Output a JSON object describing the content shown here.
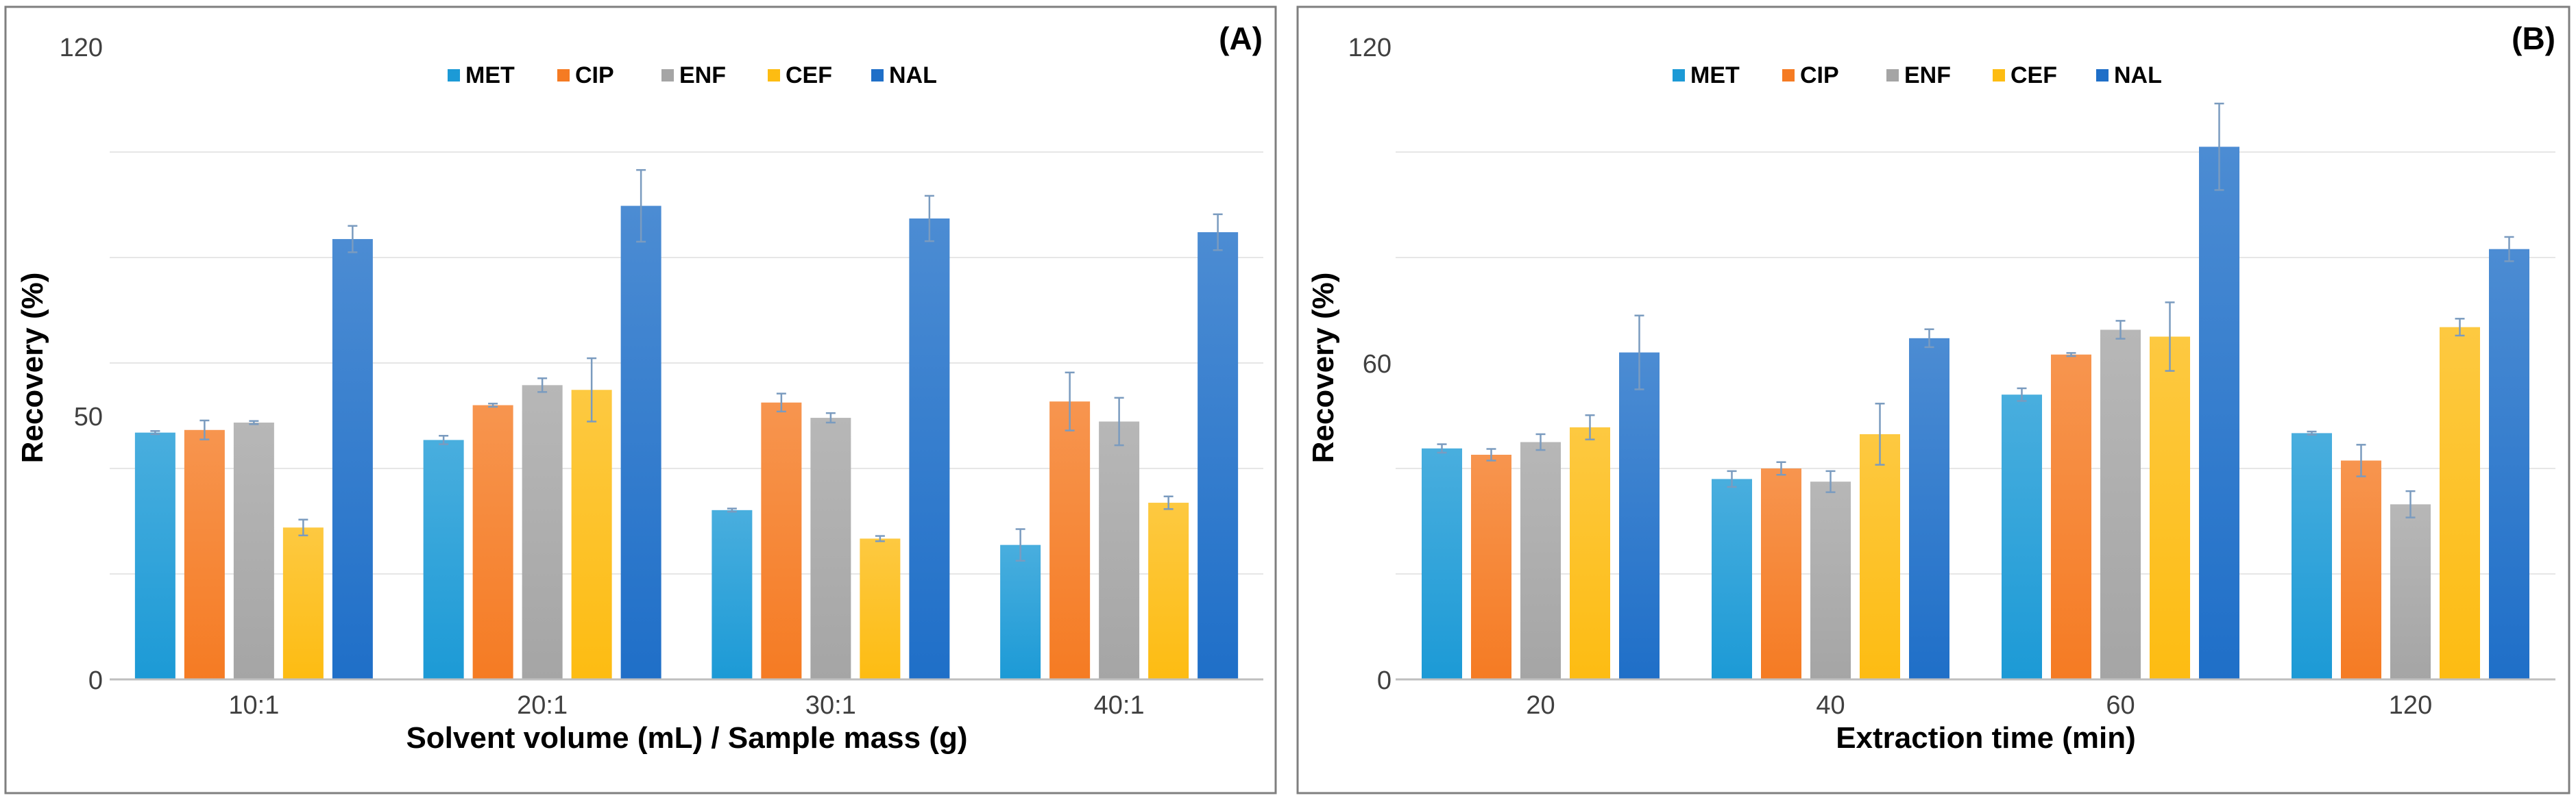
{
  "colors": {
    "MET": "#1c9ad6",
    "CIP": "#f57b23",
    "ENF": "#a5a5a5",
    "CEF": "#fdbc12",
    "NAL": "#1f6fc8",
    "frame": "#7f7f7f",
    "grid": "#e6e6e6",
    "axis": "#bfbfbf",
    "text": "#000000",
    "tick": "#404040",
    "errorbar": "#7a9bbf"
  },
  "chart_data": [
    {
      "type": "bar",
      "panel_label": "(A)",
      "title": "",
      "xlabel": "Solvent volume (mL) / Sample mass (g)",
      "ylabel": "Recovery (%)",
      "ylim": [
        0,
        120
      ],
      "ytick_values": [
        0,
        50,
        120
      ],
      "ytick_labels": [
        "0",
        "50",
        "120"
      ],
      "grid": true,
      "grid_values": [
        20,
        40,
        60,
        80,
        100
      ],
      "legend_position": "top",
      "categories": [
        "10:1",
        "20:1",
        "30:1",
        "40:1"
      ],
      "series": [
        {
          "name": "MET",
          "values": [
            46.8,
            45.4,
            32.1,
            25.5
          ],
          "errors": [
            0.3,
            0.8,
            0.3,
            3.0
          ]
        },
        {
          "name": "CIP",
          "values": [
            47.3,
            52.0,
            52.5,
            52.7
          ],
          "errors": [
            1.8,
            0.3,
            1.7,
            5.5
          ]
        },
        {
          "name": "ENF",
          "values": [
            48.7,
            55.8,
            49.6,
            48.9
          ],
          "errors": [
            0.3,
            1.3,
            0.9,
            4.5
          ]
        },
        {
          "name": "CEF",
          "values": [
            28.8,
            54.9,
            26.7,
            33.5
          ],
          "errors": [
            1.5,
            6.0,
            0.5,
            1.2
          ]
        },
        {
          "name": "NAL",
          "values": [
            83.5,
            89.8,
            87.4,
            84.8
          ],
          "errors": [
            2.5,
            6.8,
            4.3,
            3.4
          ]
        }
      ]
    },
    {
      "type": "bar",
      "panel_label": "(B)",
      "title": "",
      "xlabel": "Extraction time (min)",
      "ylabel": "Recovery (%)",
      "ylim": [
        0,
        120
      ],
      "ytick_values": [
        0,
        60,
        120
      ],
      "ytick_labels": [
        "0",
        "60",
        "120"
      ],
      "grid": true,
      "grid_values": [
        20,
        40,
        80,
        100
      ],
      "legend_position": "top",
      "categories": [
        "20",
        "40",
        "60",
        "120"
      ],
      "series": [
        {
          "name": "MET",
          "values": [
            43.8,
            38.0,
            54.0,
            46.7
          ],
          "errors": [
            0.8,
            1.5,
            1.2,
            0.3
          ]
        },
        {
          "name": "CIP",
          "values": [
            42.6,
            40.0,
            61.6,
            41.5
          ],
          "errors": [
            1.1,
            1.2,
            0.3,
            3.0
          ]
        },
        {
          "name": "ENF",
          "values": [
            45.0,
            37.5,
            66.3,
            33.2
          ],
          "errors": [
            1.5,
            2.0,
            1.7,
            2.5
          ]
        },
        {
          "name": "CEF",
          "values": [
            47.8,
            46.5,
            65.0,
            66.8
          ],
          "errors": [
            2.3,
            5.8,
            6.5,
            1.6
          ]
        },
        {
          "name": "NAL",
          "values": [
            62.0,
            64.7,
            101.0,
            81.6
          ],
          "errors": [
            7.0,
            1.7,
            8.2,
            2.3
          ]
        }
      ]
    }
  ]
}
